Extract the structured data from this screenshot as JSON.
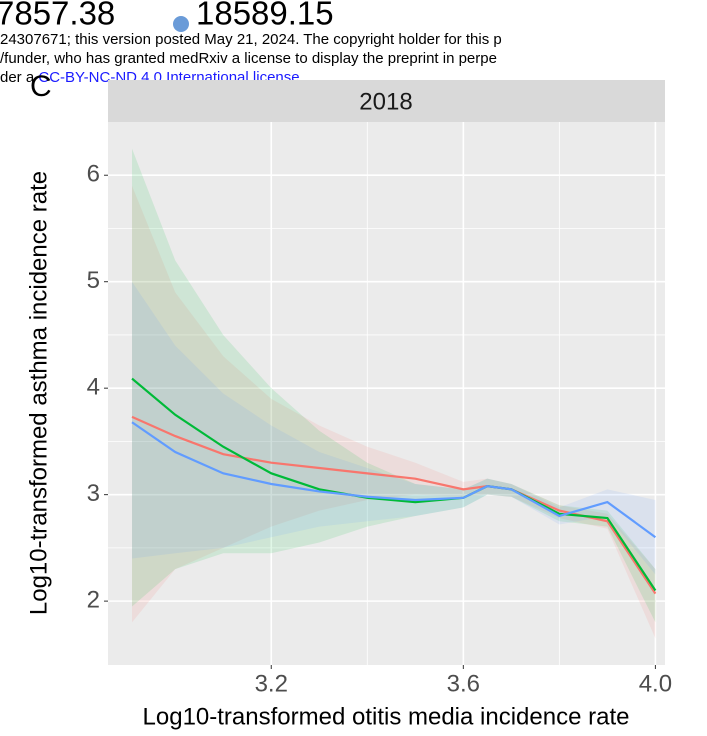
{
  "chart_data": {
    "type": "line",
    "annotations": [
      "7857.38",
      "18589.15",
      "24307671; this version posted May 21, 2024. The copyright holder for this p",
      "/funder, who has granted medRxiv a license to display the preprint in perpe",
      "der a",
      "CC-BY-NC-ND 4.0 International license",
      ".",
      "C"
    ],
    "facet": "2018",
    "x_label": "Log10-transformed otitis media incidence rate",
    "y_label": "Log10-transformed asthma incidence rate",
    "x": [
      2.91,
      3.0,
      3.1,
      3.2,
      3.3,
      3.4,
      3.5,
      3.6,
      3.65,
      3.7,
      3.8,
      3.9,
      4.0
    ],
    "series": [
      {
        "color": "#f8766d",
        "values": [
          3.73,
          3.55,
          3.38,
          3.3,
          3.25,
          3.2,
          3.15,
          3.05,
          3.08,
          3.05,
          2.85,
          2.75,
          2.07
        ],
        "lower": [
          1.8,
          2.3,
          2.5,
          2.7,
          2.85,
          2.95,
          3.0,
          2.98,
          3.0,
          2.98,
          2.78,
          2.68,
          1.65
        ],
        "upper": [
          5.9,
          4.9,
          4.3,
          3.9,
          3.65,
          3.45,
          3.3,
          3.12,
          3.15,
          3.1,
          2.9,
          2.82,
          2.3
        ]
      },
      {
        "color": "#00ba38",
        "values": [
          4.09,
          3.75,
          3.45,
          3.2,
          3.05,
          2.97,
          2.93,
          2.97,
          3.08,
          3.05,
          2.82,
          2.78,
          2.1
        ],
        "lower": [
          1.95,
          2.3,
          2.45,
          2.45,
          2.55,
          2.7,
          2.8,
          2.88,
          3.0,
          2.98,
          2.75,
          2.7,
          1.8
        ],
        "upper": [
          6.25,
          5.2,
          4.5,
          4.0,
          3.6,
          3.3,
          3.1,
          3.05,
          3.15,
          3.1,
          2.9,
          2.85,
          2.3
        ]
      },
      {
        "color": "#619cff",
        "values": [
          3.68,
          3.4,
          3.2,
          3.1,
          3.03,
          2.98,
          2.95,
          2.97,
          3.08,
          3.05,
          2.8,
          2.93,
          2.6
        ],
        "lower": [
          2.4,
          2.45,
          2.5,
          2.6,
          2.7,
          2.75,
          2.8,
          2.88,
          3.0,
          2.98,
          2.72,
          2.8,
          2.25
        ],
        "upper": [
          5.0,
          4.4,
          3.95,
          3.65,
          3.4,
          3.25,
          3.1,
          3.05,
          3.15,
          3.1,
          2.88,
          3.05,
          2.95
        ]
      }
    ],
    "xlim": [
      2.86,
      4.02
    ],
    "ylim": [
      1.4,
      6.5
    ],
    "xticks": [
      3.2,
      3.6,
      {
        "value": 4.0,
        "label": "4.0"
      }
    ],
    "yticks": [
      2,
      3,
      4,
      5,
      6
    ],
    "grid": true
  }
}
